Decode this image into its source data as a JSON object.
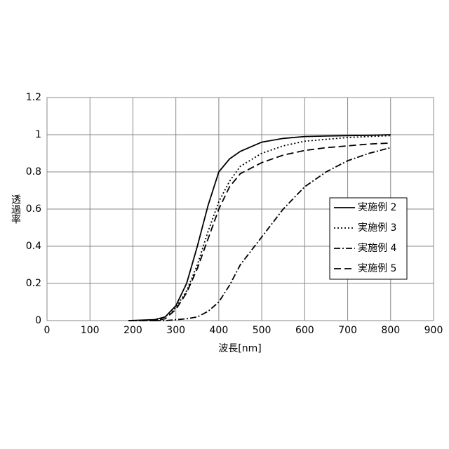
{
  "chart_data": {
    "type": "line",
    "x_label": "波長[nm]",
    "y_label": "透過率",
    "x": [
      190,
      250,
      275,
      300,
      325,
      350,
      375,
      400,
      425,
      450,
      500,
      550,
      600,
      650,
      700,
      750,
      800
    ],
    "series": [
      {
        "name": "実施例 2",
        "color": "#000000",
        "dash": "solid",
        "values": [
          0,
          0.005,
          0.02,
          0.08,
          0.2,
          0.4,
          0.62,
          0.8,
          0.87,
          0.91,
          0.96,
          0.98,
          0.99,
          0.993,
          0.995,
          0.997,
          1.0
        ]
      },
      {
        "name": "実施例 3",
        "color": "#000000",
        "dash": "dotted",
        "values": [
          0,
          0,
          0.02,
          0.07,
          0.16,
          0.3,
          0.48,
          0.64,
          0.75,
          0.83,
          0.9,
          0.94,
          0.965,
          0.975,
          0.985,
          0.99,
          0.995
        ]
      },
      {
        "name": "実施例 4",
        "color": "#000000",
        "dash": "dashdot",
        "values": [
          null,
          0,
          0,
          0.005,
          0.01,
          0.02,
          0.05,
          0.1,
          0.19,
          0.3,
          0.45,
          0.6,
          0.72,
          0.8,
          0.86,
          0.9,
          0.93
        ]
      },
      {
        "name": "実施例 5",
        "color": "#000000",
        "dash": "dashed",
        "values": [
          0,
          0,
          0.01,
          0.06,
          0.15,
          0.28,
          0.44,
          0.6,
          0.72,
          0.79,
          0.85,
          0.89,
          0.915,
          0.93,
          0.94,
          0.95,
          0.955
        ]
      }
    ],
    "xlim": [
      0,
      900
    ],
    "xticks": [
      0,
      100,
      200,
      300,
      400,
      500,
      600,
      700,
      800,
      900
    ],
    "ylim": [
      0,
      1.2
    ],
    "yticks": [
      0,
      0.2,
      0.4,
      0.6,
      0.8,
      1,
      1.2
    ],
    "grid": true,
    "legend": "right"
  }
}
